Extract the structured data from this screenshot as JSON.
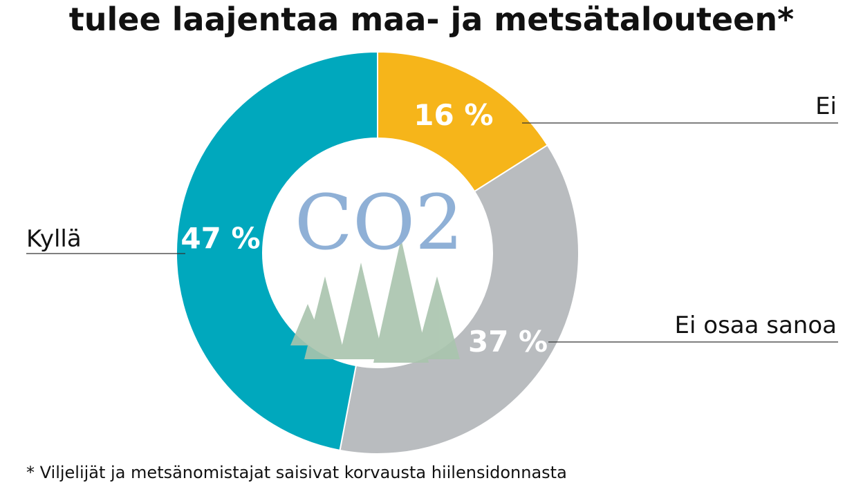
{
  "chart_data": {
    "type": "donut",
    "title": "tulee laajentaa maa- ja metsätalouteen*",
    "footnote": "* Viljelijät ja metsänomistajat saisivat korvausta hiilensidonnasta",
    "center_text": "CO2",
    "categories": [
      "Ei",
      "Ei osaa sanoa",
      "Kyllä"
    ],
    "values": [
      16,
      37,
      47
    ],
    "value_labels": [
      "16 %",
      "37 %",
      "47 %"
    ],
    "colors": [
      "#f6b51a",
      "#b9bcbf",
      "#00a8bd"
    ]
  }
}
